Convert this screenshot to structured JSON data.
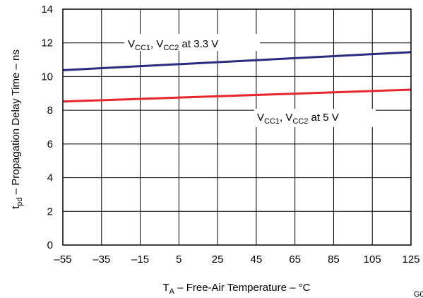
{
  "chart_data": {
    "type": "line",
    "xlabel": {
      "main": "T",
      "sub": "A",
      "rest": " – Free-Air Temperature – °C"
    },
    "ylabel": {
      "main": "t",
      "sub": "pd",
      "rest": " – Propagation Delay Time – ns"
    },
    "xlim": [
      -55,
      125
    ],
    "ylim": [
      0,
      14
    ],
    "xticks": [
      -55,
      -35,
      -15,
      5,
      25,
      45,
      65,
      85,
      105,
      125
    ],
    "yticks": [
      0,
      2,
      4,
      6,
      8,
      10,
      12,
      14
    ],
    "grid": true,
    "series": [
      {
        "color": "#2a2a80",
        "x": [
          -55,
          125
        ],
        "y": [
          10.38,
          11.45
        ],
        "label": {
          "v": "V",
          "s1": "CC1",
          "mid": ", V",
          "s2": "CC2",
          "tail": " at 3.3 V"
        }
      },
      {
        "color": "#e8262e",
        "x": [
          -55,
          125
        ],
        "y": [
          8.52,
          9.22
        ],
        "label": {
          "v": "V",
          "s1": "CC1",
          "mid": ", V",
          "s2": "CC2",
          "tail": " at 5 V"
        }
      }
    ],
    "figure_id": "G0"
  }
}
